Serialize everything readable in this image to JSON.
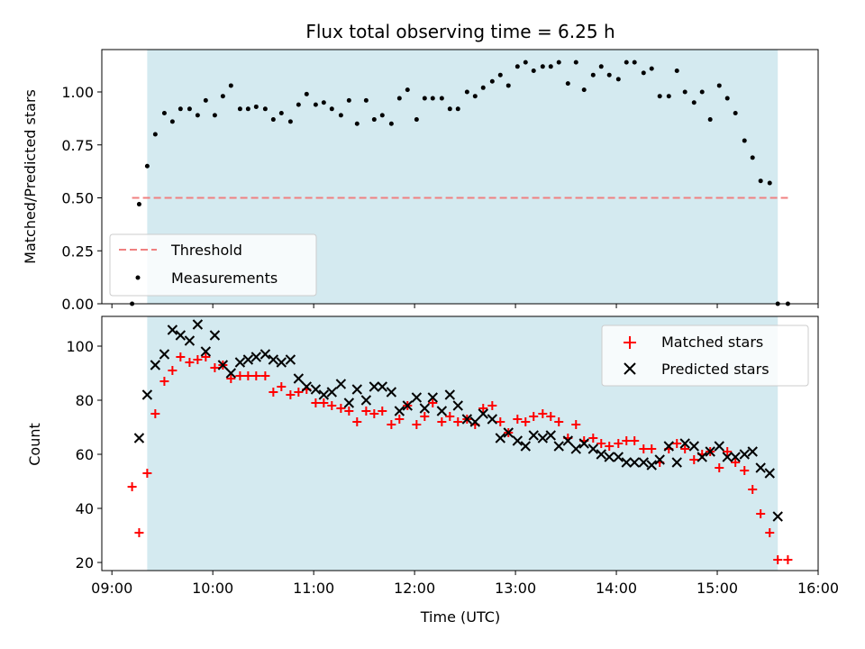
{
  "chart_data": [
    {
      "type": "scatter",
      "title": "Flux total observing time = 6.25 h",
      "xlabel": "",
      "ylabel": "Matched/Predicted stars",
      "x_unit": "hours UTC",
      "xlim": [
        8.9,
        16.0
      ],
      "ylim": [
        0.0,
        1.2
      ],
      "yticks": [
        0.0,
        0.25,
        0.5,
        0.75,
        1.0
      ],
      "ytick_labels": [
        "0.00",
        "0.25",
        "0.50",
        "0.75",
        "1.00"
      ],
      "shaded_span": [
        9.35,
        15.6
      ],
      "shade_color": "#d4eaf0",
      "threshold": {
        "name": "Threshold",
        "y": 0.5,
        "x_range": [
          9.2,
          15.7
        ],
        "color": "#f08080"
      },
      "series": [
        {
          "name": "Measurements",
          "marker": "dot",
          "color": "#000000",
          "x": [
            9.2,
            9.27,
            9.35,
            9.43,
            9.52,
            9.6,
            9.68,
            9.77,
            9.85,
            9.93,
            10.02,
            10.1,
            10.18,
            10.27,
            10.35,
            10.43,
            10.52,
            10.6,
            10.68,
            10.77,
            10.85,
            10.93,
            11.02,
            11.1,
            11.18,
            11.27,
            11.35,
            11.43,
            11.52,
            11.6,
            11.68,
            11.77,
            11.85,
            11.93,
            12.02,
            12.1,
            12.18,
            12.27,
            12.35,
            12.43,
            12.52,
            12.6,
            12.68,
            12.77,
            12.85,
            12.93,
            13.02,
            13.1,
            13.18,
            13.27,
            13.35,
            13.43,
            13.52,
            13.6,
            13.68,
            13.77,
            13.85,
            13.93,
            14.02,
            14.1,
            14.18,
            14.27,
            14.35,
            14.43,
            14.52,
            14.6,
            14.68,
            14.77,
            14.85,
            14.93,
            15.02,
            15.1,
            15.18,
            15.27,
            15.35,
            15.43,
            15.52,
            15.6,
            15.7
          ],
          "y": [
            0.0,
            0.47,
            0.65,
            0.8,
            0.9,
            0.86,
            0.92,
            0.92,
            0.89,
            0.96,
            0.89,
            0.98,
            1.03,
            0.92,
            0.92,
            0.93,
            0.92,
            0.87,
            0.9,
            0.86,
            0.94,
            0.99,
            0.94,
            0.95,
            0.92,
            0.89,
            0.96,
            0.85,
            0.96,
            0.87,
            0.89,
            0.85,
            0.97,
            1.01,
            0.87,
            0.97,
            0.97,
            0.97,
            0.92,
            0.92,
            1.0,
            0.98,
            1.02,
            1.05,
            1.08,
            1.03,
            1.12,
            1.14,
            1.1,
            1.12,
            1.12,
            1.14,
            1.04,
            1.14,
            1.01,
            1.08,
            1.12,
            1.08,
            1.06,
            1.14,
            1.14,
            1.09,
            1.11,
            0.98,
            0.98,
            1.1,
            1.0,
            0.95,
            1.0,
            0.87,
            1.03,
            0.97,
            0.9,
            0.77,
            0.69,
            0.58,
            0.57,
            0.0,
            0.0
          ]
        }
      ],
      "legend": {
        "position": "lower-left",
        "entries": [
          "Threshold",
          "Measurements"
        ]
      }
    },
    {
      "type": "scatter",
      "title": "",
      "xlabel": "Time (UTC)",
      "ylabel": "Count",
      "x_unit": "hours UTC",
      "xlim": [
        8.9,
        16.0
      ],
      "ylim": [
        17,
        111
      ],
      "yticks": [
        20,
        40,
        60,
        80,
        100
      ],
      "ytick_labels": [
        "20",
        "40",
        "60",
        "80",
        "100"
      ],
      "xticks": [
        9,
        10,
        11,
        12,
        13,
        14,
        15,
        16
      ],
      "xtick_labels": [
        "09:00",
        "10:00",
        "11:00",
        "12:00",
        "13:00",
        "14:00",
        "15:00",
        "16:00"
      ],
      "shaded_span": [
        9.35,
        15.6
      ],
      "shade_color": "#d4eaf0",
      "series": [
        {
          "name": "Matched stars",
          "marker": "plus",
          "color": "#ff0000",
          "x": [
            9.2,
            9.27,
            9.35,
            9.43,
            9.52,
            9.6,
            9.68,
            9.77,
            9.85,
            9.93,
            10.02,
            10.1,
            10.18,
            10.27,
            10.35,
            10.43,
            10.52,
            10.6,
            10.68,
            10.77,
            10.85,
            10.93,
            11.02,
            11.1,
            11.18,
            11.27,
            11.35,
            11.43,
            11.52,
            11.6,
            11.68,
            11.77,
            11.85,
            11.93,
            12.02,
            12.1,
            12.18,
            12.27,
            12.35,
            12.43,
            12.52,
            12.6,
            12.68,
            12.77,
            12.85,
            12.93,
            13.02,
            13.1,
            13.18,
            13.27,
            13.35,
            13.43,
            13.52,
            13.6,
            13.68,
            13.77,
            13.85,
            13.93,
            14.02,
            14.1,
            14.18,
            14.27,
            14.35,
            14.43,
            14.52,
            14.6,
            14.68,
            14.77,
            14.85,
            14.93,
            15.02,
            15.1,
            15.18,
            15.27,
            15.35,
            15.43,
            15.52,
            15.6,
            15.7
          ],
          "y": [
            48,
            31,
            53,
            75,
            87,
            91,
            96,
            94,
            95,
            96,
            92,
            93,
            88,
            89,
            89,
            89,
            89,
            83,
            85,
            82,
            83,
            84,
            79,
            79,
            78,
            77,
            76,
            72,
            76,
            75,
            76,
            71,
            73,
            78,
            71,
            74,
            79,
            72,
            74,
            72,
            73,
            71,
            77,
            78,
            72,
            68,
            73,
            72,
            74,
            75,
            74,
            72,
            66,
            71,
            65,
            66,
            64,
            63,
            64,
            65,
            65,
            62,
            62,
            57,
            62,
            64,
            62,
            58,
            60,
            61,
            55,
            61,
            57,
            54,
            47,
            38,
            31,
            21,
            21
          ]
        },
        {
          "name": "Predicted stars",
          "marker": "x",
          "color": "#000000",
          "x": [
            9.27,
            9.35,
            9.43,
            9.52,
            9.6,
            9.68,
            9.77,
            9.85,
            9.93,
            10.02,
            10.1,
            10.18,
            10.27,
            10.35,
            10.43,
            10.52,
            10.6,
            10.68,
            10.77,
            10.85,
            10.93,
            11.02,
            11.1,
            11.18,
            11.27,
            11.35,
            11.43,
            11.52,
            11.6,
            11.68,
            11.77,
            11.85,
            11.93,
            12.02,
            12.1,
            12.18,
            12.27,
            12.35,
            12.43,
            12.52,
            12.6,
            12.68,
            12.77,
            12.85,
            12.93,
            13.02,
            13.1,
            13.18,
            13.27,
            13.35,
            13.43,
            13.52,
            13.6,
            13.68,
            13.77,
            13.85,
            13.93,
            14.02,
            14.1,
            14.18,
            14.27,
            14.35,
            14.43,
            14.52,
            14.6,
            14.68,
            14.77,
            14.85,
            14.93,
            15.02,
            15.1,
            15.18,
            15.27,
            15.35,
            15.43,
            15.52,
            15.6
          ],
          "y": [
            66,
            82,
            93,
            97,
            106,
            104,
            102,
            108,
            98,
            104,
            93,
            90,
            94,
            95,
            96,
            97,
            95,
            94,
            95,
            88,
            85,
            84,
            82,
            83,
            86,
            79,
            84,
            80,
            85,
            85,
            83,
            76,
            78,
            81,
            77,
            81,
            76,
            82,
            78,
            73,
            72,
            75,
            73,
            66,
            68,
            65,
            63,
            67,
            66,
            67,
            63,
            65,
            62,
            64,
            62,
            60,
            59,
            59,
            57,
            57,
            57,
            56,
            58,
            63,
            57,
            64,
            63,
            59,
            61,
            63,
            59,
            59,
            60,
            61,
            55,
            53,
            37
          ]
        }
      ],
      "legend": {
        "position": "upper-right",
        "entries": [
          "Matched stars",
          "Predicted stars"
        ]
      }
    }
  ]
}
